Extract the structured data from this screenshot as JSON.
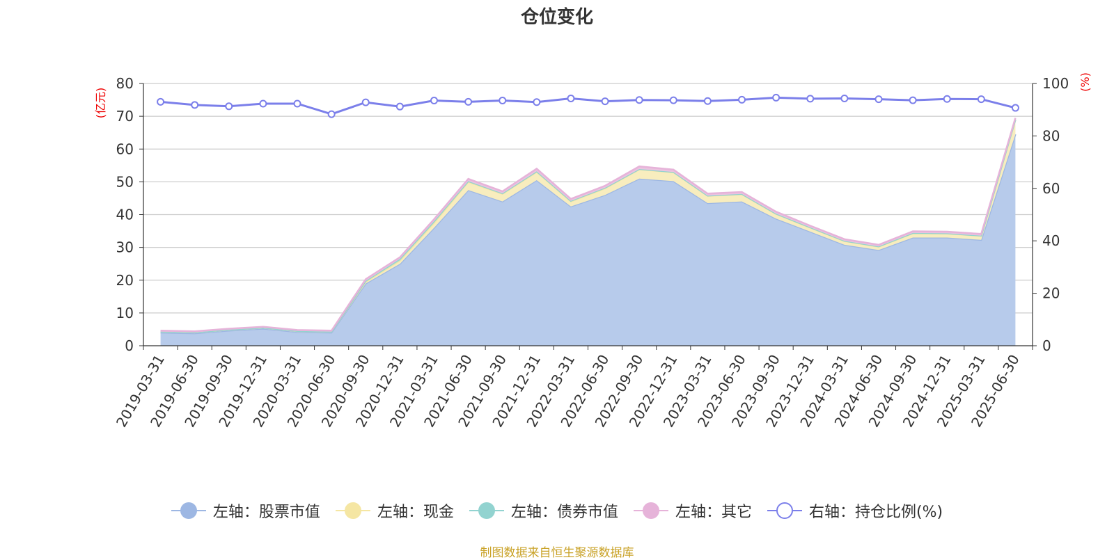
{
  "chart_data": {
    "type": "area",
    "title": "仓位变化",
    "left_axis_unit": "(亿元)",
    "right_axis_unit": "(%)",
    "left_ylim": [
      0,
      80
    ],
    "left_yticks": [
      0,
      10,
      20,
      30,
      40,
      50,
      60,
      70,
      80
    ],
    "right_ylim": [
      0,
      100
    ],
    "right_yticks": [
      0,
      20,
      40,
      60,
      80,
      100
    ],
    "grid": true,
    "legend_position": "bottom",
    "categories": [
      "2019-03-31",
      "2019-06-30",
      "2019-09-30",
      "2019-12-31",
      "2020-03-31",
      "2020-06-30",
      "2020-09-30",
      "2020-12-31",
      "2021-03-31",
      "2021-06-30",
      "2021-09-30",
      "2021-12-31",
      "2022-03-31",
      "2022-06-30",
      "2022-09-30",
      "2022-12-31",
      "2023-03-31",
      "2023-06-30",
      "2023-09-30",
      "2023-12-31",
      "2024-03-31",
      "2024-06-30",
      "2024-09-30",
      "2024-12-31",
      "2025-03-31",
      "2025-06-30"
    ],
    "series": [
      {
        "name": "左轴：股票市值",
        "axis": "left",
        "stack": true,
        "color": "#9db7e3",
        "fill": "#b7cbeb",
        "values": [
          4.0,
          3.8,
          4.6,
          5.2,
          4.2,
          4.0,
          19.0,
          25.0,
          36.0,
          47.5,
          44.0,
          50.5,
          42.5,
          46.0,
          51.0,
          50.2,
          43.5,
          44.0,
          38.8,
          34.8,
          30.8,
          29.2,
          33.0,
          33.0,
          32.3,
          64.5
        ]
      },
      {
        "name": "左轴：现金",
        "axis": "left",
        "stack": true,
        "color": "#f5e6a3",
        "fill": "#f8edbe",
        "values": [
          0.3,
          0.3,
          0.3,
          0.3,
          0.3,
          0.3,
          0.5,
          1.0,
          1.5,
          2.5,
          2.3,
          2.5,
          1.5,
          2.0,
          2.8,
          2.7,
          2.2,
          2.2,
          1.4,
          1.2,
          1.1,
          1.0,
          1.3,
          1.2,
          1.2,
          4.4
        ]
      },
      {
        "name": "左轴：债券市值",
        "axis": "left",
        "stack": true,
        "color": "#92d3d0",
        "fill": "#a8dcd6",
        "values": [
          0.0,
          0.0,
          0.0,
          0.0,
          0.0,
          0.0,
          0.3,
          0.5,
          0.5,
          0.2,
          0.2,
          0.2,
          0.2,
          0.2,
          0.1,
          0.1,
          0.1,
          0.1,
          0.1,
          0.1,
          0.1,
          0.1,
          0.1,
          0.1,
          0.1,
          0.1
        ]
      },
      {
        "name": "左轴：其它",
        "axis": "left",
        "stack": true,
        "color": "#e6b3d9",
        "fill": "#ecc4e0",
        "values": [
          0.3,
          0.3,
          0.3,
          0.3,
          0.3,
          0.3,
          0.5,
          0.5,
          0.6,
          0.7,
          0.6,
          0.8,
          0.6,
          0.6,
          0.8,
          0.7,
          0.6,
          0.6,
          0.6,
          0.5,
          0.5,
          0.5,
          0.5,
          0.5,
          0.5,
          0.5
        ]
      },
      {
        "name": "右轴：持仓比例(%)",
        "axis": "right",
        "stack": false,
        "color": "#7b7fea",
        "values": [
          93.0,
          91.8,
          91.3,
          92.3,
          92.3,
          88.3,
          92.8,
          91.2,
          93.5,
          93.0,
          93.5,
          92.9,
          94.3,
          93.2,
          93.7,
          93.6,
          93.3,
          93.8,
          94.6,
          94.2,
          94.3,
          94.0,
          93.6,
          94.1,
          94.0,
          90.7
        ]
      }
    ]
  },
  "footer": {
    "source": "制图数据来自恒生聚源数据库"
  }
}
